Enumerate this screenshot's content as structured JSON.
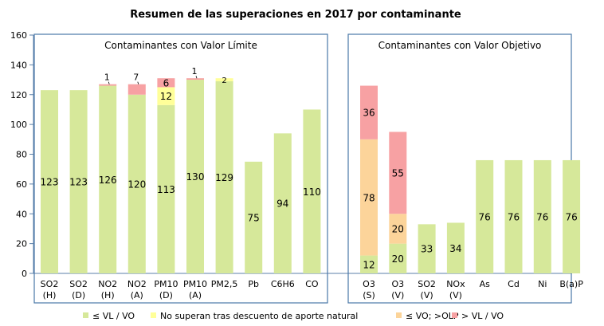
{
  "chart_data": {
    "type": "bar",
    "stacked": true,
    "title": "Resumen de las superaciones en 2017 por contaminante",
    "ylim": [
      0,
      160
    ],
    "yticks": [
      0,
      20,
      40,
      60,
      80,
      100,
      120,
      140,
      160
    ],
    "grid": false,
    "legend_position": "bottom",
    "legend": [
      {
        "key": "vl",
        "label": "≤ VL / VO",
        "color": "#d6e89a"
      },
      {
        "key": "nat",
        "label": "No superan tras descuento de aporte natural",
        "color": "#ffff99"
      },
      {
        "key": "olp",
        "label": "≤ VO; >OLP",
        "color": "#fcd49a"
      },
      {
        "key": "over",
        "label": "> VL / VO",
        "color": "#f7a1a3"
      }
    ],
    "groups": [
      {
        "title": "Contaminantes con Valor Límite",
        "categories": [
          {
            "line1": "SO2",
            "line2": "(H)",
            "segments": [
              {
                "key": "vl",
                "value": 123,
                "label": "123"
              }
            ]
          },
          {
            "line1": "SO2",
            "line2": "(D)",
            "segments": [
              {
                "key": "vl",
                "value": 123,
                "label": "123"
              }
            ]
          },
          {
            "line1": "NO2",
            "line2": "(H)",
            "segments": [
              {
                "key": "vl",
                "value": 126,
                "label": "126"
              },
              {
                "key": "over",
                "value": 1,
                "label": "1",
                "outside": true
              }
            ]
          },
          {
            "line1": "NO2",
            "line2": "(A)",
            "segments": [
              {
                "key": "vl",
                "value": 120,
                "label": "120"
              },
              {
                "key": "over",
                "value": 7,
                "label": "7",
                "outside": true
              }
            ]
          },
          {
            "line1": "PM10",
            "line2": "(D)",
            "segments": [
              {
                "key": "vl",
                "value": 113,
                "label": "113"
              },
              {
                "key": "nat",
                "value": 12,
                "label": "12"
              },
              {
                "key": "over",
                "value": 6,
                "label": "6"
              }
            ]
          },
          {
            "line1": "PM10",
            "line2": "(A)",
            "segments": [
              {
                "key": "vl",
                "value": 130,
                "label": "130"
              },
              {
                "key": "over",
                "value": 1,
                "label": "1",
                "outside": true
              }
            ]
          },
          {
            "line1": "PM2,5",
            "line2": "",
            "segments": [
              {
                "key": "vl",
                "value": 129,
                "label": "129"
              },
              {
                "key": "nat",
                "value": 2,
                "label": "2"
              }
            ]
          },
          {
            "line1": "Pb",
            "line2": "",
            "segments": [
              {
                "key": "vl",
                "value": 75,
                "label": "75"
              }
            ]
          },
          {
            "line1": "C6H6",
            "line2": "",
            "segments": [
              {
                "key": "vl",
                "value": 94,
                "label": "94"
              }
            ]
          },
          {
            "line1": "CO",
            "line2": "",
            "segments": [
              {
                "key": "vl",
                "value": 110,
                "label": "110"
              }
            ]
          }
        ]
      },
      {
        "title": "Contaminantes con Valor Objetivo",
        "categories": [
          {
            "line1": "O3",
            "line2": "(S)",
            "segments": [
              {
                "key": "vl",
                "value": 12,
                "label": "12"
              },
              {
                "key": "olp",
                "value": 78,
                "label": "78"
              },
              {
                "key": "over",
                "value": 36,
                "label": "36"
              }
            ]
          },
          {
            "line1": "O3",
            "line2": "(V)",
            "segments": [
              {
                "key": "vl",
                "value": 20,
                "label": "20"
              },
              {
                "key": "olp",
                "value": 20,
                "label": "20"
              },
              {
                "key": "over",
                "value": 55,
                "label": "55"
              }
            ]
          },
          {
            "line1": "SO2",
            "line2": "(V)",
            "segments": [
              {
                "key": "vl",
                "value": 33,
                "label": "33"
              }
            ]
          },
          {
            "line1": "NOx",
            "line2": "(V)",
            "segments": [
              {
                "key": "vl",
                "value": 34,
                "label": "34"
              }
            ]
          },
          {
            "line1": "As",
            "line2": "",
            "segments": [
              {
                "key": "vl",
                "value": 76,
                "label": "76"
              }
            ]
          },
          {
            "line1": "Cd",
            "line2": "",
            "segments": [
              {
                "key": "vl",
                "value": 76,
                "label": "76"
              }
            ]
          },
          {
            "line1": "Ni",
            "line2": "",
            "segments": [
              {
                "key": "vl",
                "value": 76,
                "label": "76"
              }
            ]
          },
          {
            "line1": "B(a)P",
            "line2": "",
            "segments": [
              {
                "key": "vl",
                "value": 76,
                "label": "76"
              }
            ]
          }
        ]
      }
    ],
    "colors": {
      "axis": "#5b7fa8",
      "panel_border": "#4a78a8",
      "text": "#000000"
    }
  }
}
